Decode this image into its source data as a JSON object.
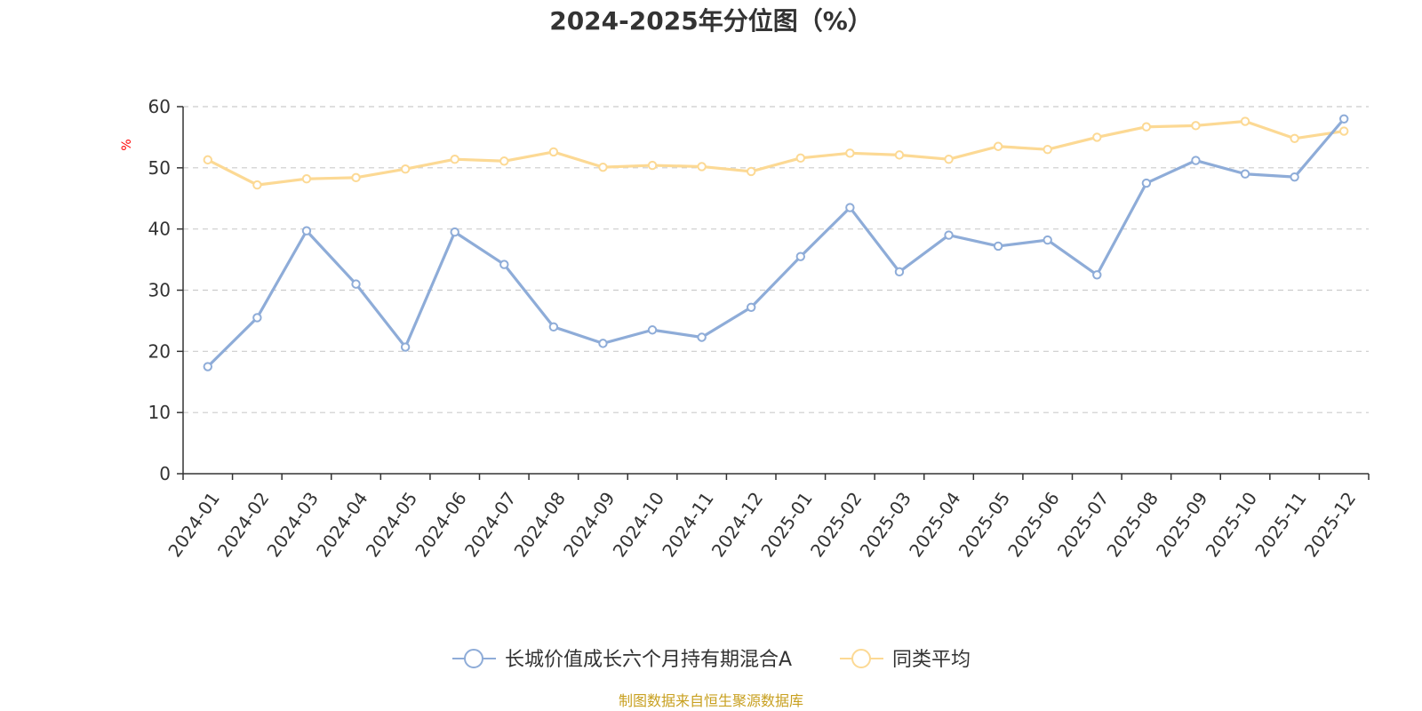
{
  "chart_data": {
    "type": "line",
    "title": "2024-2025年分位图（%）",
    "ylabel": "%",
    "xlabel": "",
    "ylim": [
      0,
      60
    ],
    "yticks": [
      0,
      10,
      20,
      30,
      40,
      50,
      60
    ],
    "grid": true,
    "legend_position": "bottom",
    "categories": [
      "2024-01",
      "2024-02",
      "2024-03",
      "2024-04",
      "2024-05",
      "2024-06",
      "2024-07",
      "2024-08",
      "2024-09",
      "2024-10",
      "2024-11",
      "2024-12",
      "2025-01",
      "2025-02",
      "2025-03",
      "2025-04",
      "2025-05",
      "2025-06",
      "2025-07",
      "2025-08",
      "2025-09",
      "2025-10",
      "2025-11",
      "2025-12"
    ],
    "series": [
      {
        "name": "长城价值成长六个月持有期混合A",
        "color": "#8eacd8",
        "values": [
          17.5,
          25.5,
          39.7,
          31.0,
          20.7,
          39.5,
          34.2,
          24.0,
          21.3,
          23.5,
          22.3,
          27.2,
          35.5,
          43.5,
          33.0,
          39.0,
          37.2,
          38.2,
          32.5,
          47.5,
          51.2,
          49.0,
          48.5,
          58.0
        ]
      },
      {
        "name": "同类平均",
        "color": "#fcd994",
        "values": [
          51.3,
          47.2,
          48.2,
          48.4,
          49.8,
          51.4,
          51.1,
          52.6,
          50.1,
          50.4,
          50.2,
          49.4,
          51.6,
          52.4,
          52.1,
          51.4,
          53.5,
          53.0,
          55.0,
          56.7,
          56.9,
          57.6,
          54.8,
          56.0
        ]
      }
    ],
    "source": "制图数据来自恒生聚源数据库"
  }
}
